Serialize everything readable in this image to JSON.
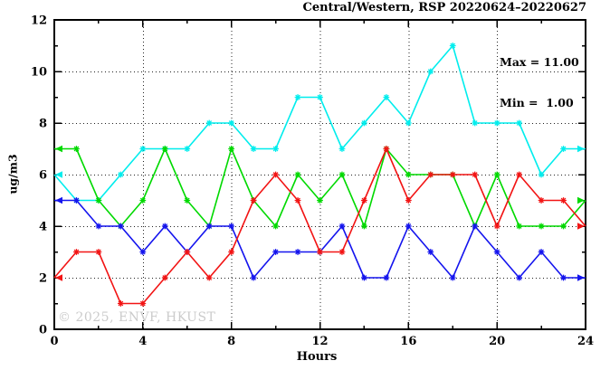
{
  "title": "Central/Western, RSP 20220624–20220627",
  "annotation": {
    "max_label": "Max = 11.00",
    "min_label": "Min =  1.00"
  },
  "watermark": "© 2025, ENVF, HKUST",
  "axes": {
    "xlabel": "Hours",
    "ylabel": "ug/m3"
  },
  "colors": {
    "frame": "#000000",
    "grid": "#222222",
    "watermark_gray": "#cbcbcb"
  },
  "chart_data": {
    "type": "line",
    "title": "Central/Western, RSP 20220624–20220627",
    "xlabel": "Hours",
    "ylabel": "ug/m3",
    "xlim": [
      0,
      24
    ],
    "ylim": [
      0,
      12
    ],
    "x_ticks_major": [
      0,
      4,
      8,
      12,
      16,
      20,
      24
    ],
    "x_ticks_minor": [
      2,
      6,
      10,
      14,
      18,
      22
    ],
    "y_ticks_major": [
      0,
      2,
      4,
      6,
      8,
      10,
      12
    ],
    "y_ticks_minor": [
      1,
      3,
      5,
      7,
      9,
      11
    ],
    "grid_x": [
      4,
      8,
      12,
      16,
      20
    ],
    "grid_y": [
      2,
      4,
      6,
      8,
      10
    ],
    "grid_style": "dotted",
    "legend": "none",
    "x": [
      0,
      1,
      2,
      3,
      4,
      5,
      6,
      7,
      8,
      9,
      10,
      11,
      12,
      13,
      14,
      15,
      16,
      17,
      18,
      19,
      20,
      21,
      22,
      23,
      24
    ],
    "series": [
      {
        "name": "station-cyan",
        "color": "#00EDED",
        "values": [
          6,
          5,
          5,
          6,
          7,
          7,
          7,
          8,
          8,
          7,
          7,
          9,
          9,
          7,
          8,
          9,
          8,
          10,
          11,
          8,
          8,
          8,
          6,
          7,
          7
        ]
      },
      {
        "name": "station-green",
        "color": "#00D900",
        "values": [
          7,
          7,
          5,
          4,
          5,
          7,
          5,
          4,
          7,
          5,
          4,
          6,
          5,
          6,
          4,
          7,
          6,
          6,
          6,
          4,
          6,
          4,
          4,
          4,
          5
        ]
      },
      {
        "name": "station-blue",
        "color": "#1414EE",
        "values": [
          5,
          5,
          4,
          4,
          3,
          4,
          3,
          4,
          4,
          2,
          3,
          3,
          3,
          4,
          2,
          2,
          4,
          3,
          2,
          4,
          3,
          2,
          3,
          2,
          2
        ]
      },
      {
        "name": "station-red",
        "color": "#F21414",
        "values": [
          2,
          3,
          3,
          1,
          1,
          2,
          3,
          2,
          3,
          5,
          6,
          5,
          3,
          3,
          5,
          7,
          5,
          6,
          6,
          6,
          4,
          6,
          5,
          5,
          4
        ]
      }
    ],
    "stats": {
      "max": 11.0,
      "min": 1.0
    }
  }
}
